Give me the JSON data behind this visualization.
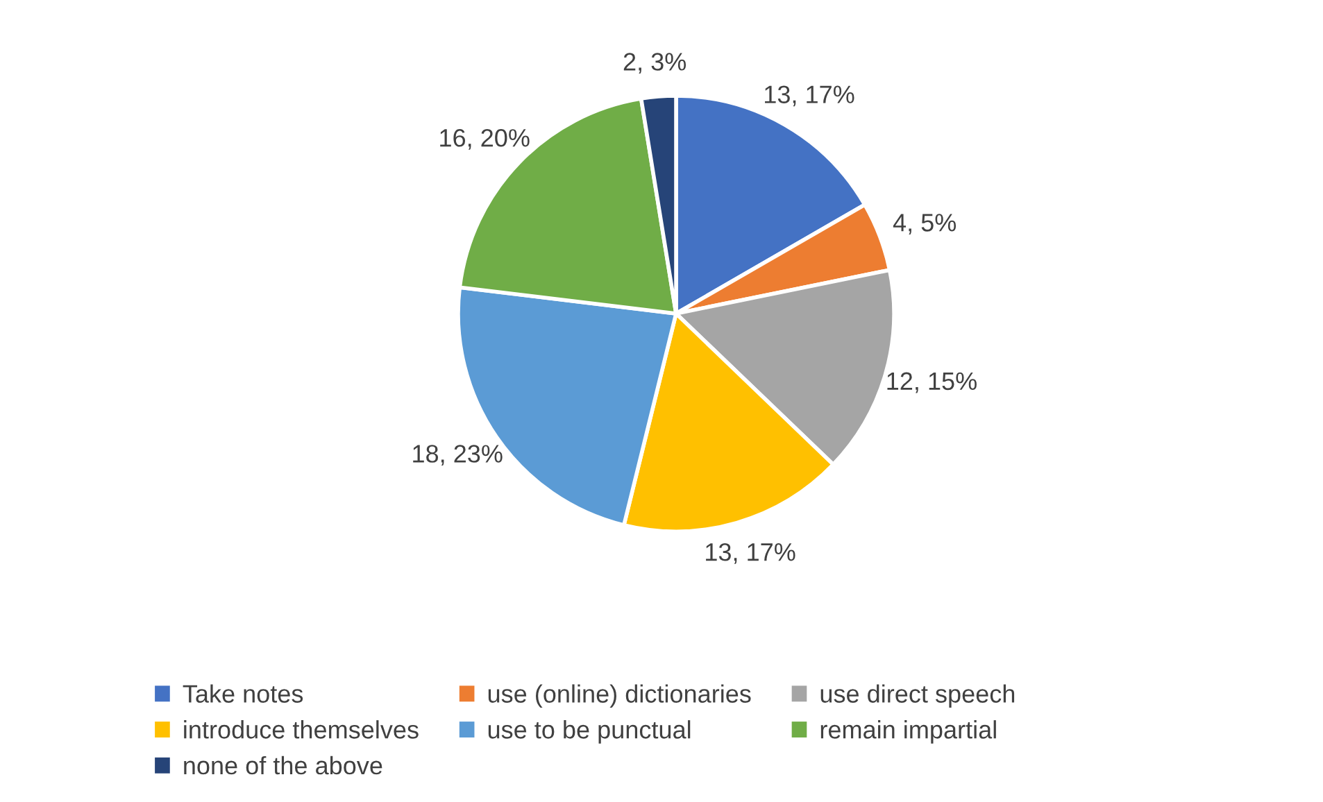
{
  "chart_data": {
    "type": "pie",
    "categories": [
      "Take notes",
      "use (online) dictionaries",
      "use direct speech",
      "introduce themselves",
      "use to be punctual",
      "remain impartial",
      "none of the above"
    ],
    "values": [
      13,
      4,
      12,
      13,
      18,
      16,
      2
    ],
    "value_labels": [
      "13, 17%",
      "4, 5%",
      "12, 15%",
      "13, 17%",
      "18, 23%",
      "16, 20%",
      "2, 3%"
    ],
    "colors": [
      "#4472c4",
      "#ed7d31",
      "#a5a5a5",
      "#ffc000",
      "#5b9bd5",
      "#70ad47",
      "#264478"
    ],
    "legend": "bottom"
  }
}
